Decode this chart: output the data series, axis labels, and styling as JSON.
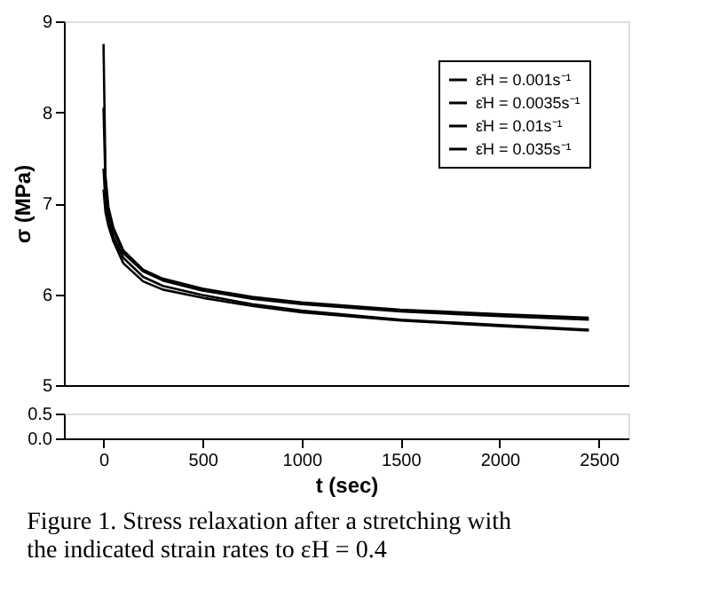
{
  "chart_data": [
    {
      "type": "line",
      "ylabel": "σ (MPa)",
      "x": [
        0,
        10,
        25,
        50,
        100,
        200,
        300,
        500,
        750,
        1000,
        1500,
        2000,
        2450
      ],
      "series": [
        {
          "name": "ε̇H = 0.001s⁻¹",
          "color": "#000000",
          "values": [
            7.15,
            6.9,
            6.75,
            6.58,
            6.34,
            6.14,
            6.05,
            5.96,
            5.87,
            5.8,
            5.71,
            5.65,
            5.6
          ]
        },
        {
          "name": "ε̇H = 0.0035s⁻¹",
          "color": "#000000",
          "values": [
            7.38,
            7.0,
            6.82,
            6.63,
            6.4,
            6.19,
            6.09,
            5.99,
            5.89,
            5.82,
            5.72,
            5.66,
            5.61
          ]
        },
        {
          "name": "ε̇H = 0.01s⁻¹",
          "color": "#000000",
          "values": [
            8.05,
            7.2,
            6.9,
            6.7,
            6.45,
            6.25,
            6.15,
            6.04,
            5.95,
            5.89,
            5.81,
            5.76,
            5.72
          ]
        },
        {
          "name": "ε̇H = 0.035s⁻¹",
          "color": "#000000",
          "values": [
            8.75,
            7.3,
            6.95,
            6.73,
            6.48,
            6.27,
            6.17,
            6.06,
            5.97,
            5.91,
            5.83,
            5.78,
            5.74
          ]
        }
      ],
      "xlim": [
        -200,
        2650
      ],
      "xticks": [
        0,
        500,
        1000,
        1500,
        2000,
        2500
      ],
      "ylim": [
        5,
        9
      ],
      "yticks": [
        5,
        6,
        7,
        8,
        9
      ],
      "tick_labels": "y",
      "grid": false,
      "legend": "top right",
      "line_style": "solid",
      "marker": "none"
    },
    {
      "type": "line",
      "xlabel": "t (sec)",
      "title": "Figure 1. Stress relaxation after a stretching with the indicated strain rates to εH = 0.4",
      "xlim": [
        -200,
        2650
      ],
      "xticks": [
        0,
        500,
        1000,
        1500,
        2000,
        2500
      ],
      "ylim": [
        0,
        0.5
      ],
      "yticks": [
        {
          "value": 0,
          "label": "0.0"
        },
        0.5
      ],
      "grid": false
    }
  ]
}
